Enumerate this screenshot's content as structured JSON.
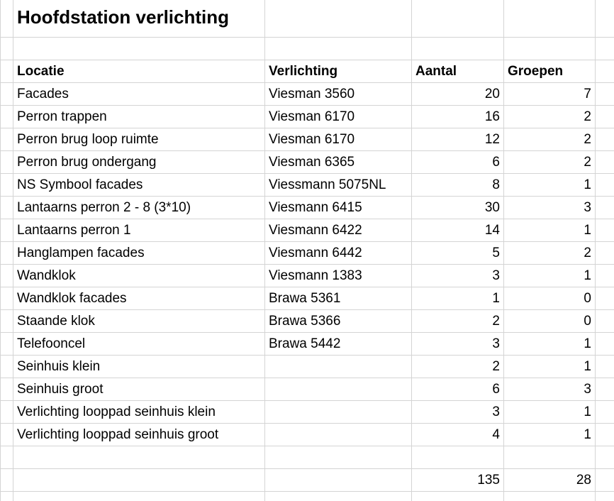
{
  "sheet": {
    "title": "Hoofdstation verlichting",
    "headers": {
      "locatie": "Locatie",
      "verlichting": "Verlichting",
      "aantal": "Aantal",
      "groepen": "Groepen"
    },
    "rows": [
      {
        "locatie": "Facades",
        "verlichting": "Viesman 3560",
        "aantal": "20",
        "groepen": "7"
      },
      {
        "locatie": "Perron trappen",
        "verlichting": "Viesman 6170",
        "aantal": "16",
        "groepen": "2"
      },
      {
        "locatie": "Perron brug loop ruimte",
        "verlichting": "Viesman 6170",
        "aantal": "12",
        "groepen": "2"
      },
      {
        "locatie": "Perron brug ondergang",
        "verlichting": "Viesman 6365",
        "aantal": "6",
        "groepen": "2"
      },
      {
        "locatie": "NS Symbool facades",
        "verlichting": "Viessmann 5075NL",
        "aantal": "8",
        "groepen": "1"
      },
      {
        "locatie": "Lantaarns perron 2 - 8 (3*10)",
        "verlichting": "Viesmann 6415",
        "aantal": "30",
        "groepen": "3"
      },
      {
        "locatie": "Lantaarns perron 1",
        "verlichting": "Viesmann 6422",
        "aantal": "14",
        "groepen": "1"
      },
      {
        "locatie": "Hanglampen facades",
        "verlichting": "Viesmann 6442",
        "aantal": "5",
        "groepen": "2"
      },
      {
        "locatie": "Wandklok",
        "verlichting": "Viesmann 1383",
        "aantal": "3",
        "groepen": "1"
      },
      {
        "locatie": "Wandklok facades",
        "verlichting": "Brawa 5361",
        "aantal": "1",
        "groepen": "0"
      },
      {
        "locatie": "Staande klok",
        "verlichting": "Brawa 5366",
        "aantal": "2",
        "groepen": "0"
      },
      {
        "locatie": "Telefooncel",
        "verlichting": "Brawa 5442",
        "aantal": "3",
        "groepen": "1"
      },
      {
        "locatie": "Seinhuis klein",
        "verlichting": "",
        "aantal": "2",
        "groepen": "1"
      },
      {
        "locatie": "Seinhuis groot",
        "verlichting": "",
        "aantal": "6",
        "groepen": "3"
      },
      {
        "locatie": "Verlichting looppad seinhuis klein",
        "verlichting": "",
        "aantal": "3",
        "groepen": "1"
      },
      {
        "locatie": "Verlichting looppad seinhuis groot",
        "verlichting": "",
        "aantal": "4",
        "groepen": "1"
      }
    ],
    "totals": {
      "aantal": "135",
      "groepen": "28"
    }
  }
}
